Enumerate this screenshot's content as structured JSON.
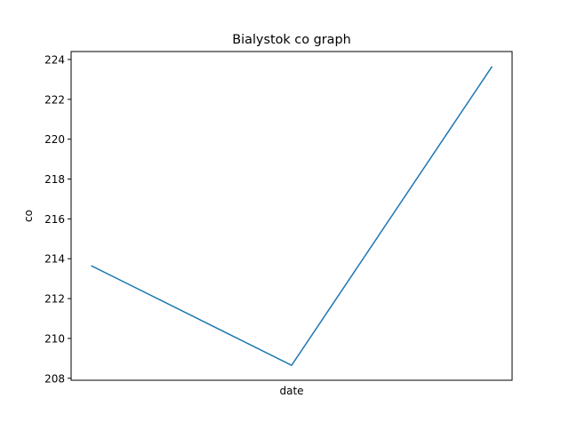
{
  "chart_data": {
    "type": "line",
    "title": "Bialystok co graph",
    "xlabel": "date",
    "ylabel": "co",
    "x": [
      0,
      1,
      2
    ],
    "x_tick_labels": [],
    "series": [
      {
        "values": [
          213.65,
          208.65,
          223.65
        ],
        "color": "#1f77b4"
      }
    ],
    "ylim": [
      208,
      224
    ],
    "y_ticks": [
      208,
      210,
      212,
      214,
      216,
      218,
      220,
      222,
      224
    ],
    "grid": false,
    "legend": null
  }
}
